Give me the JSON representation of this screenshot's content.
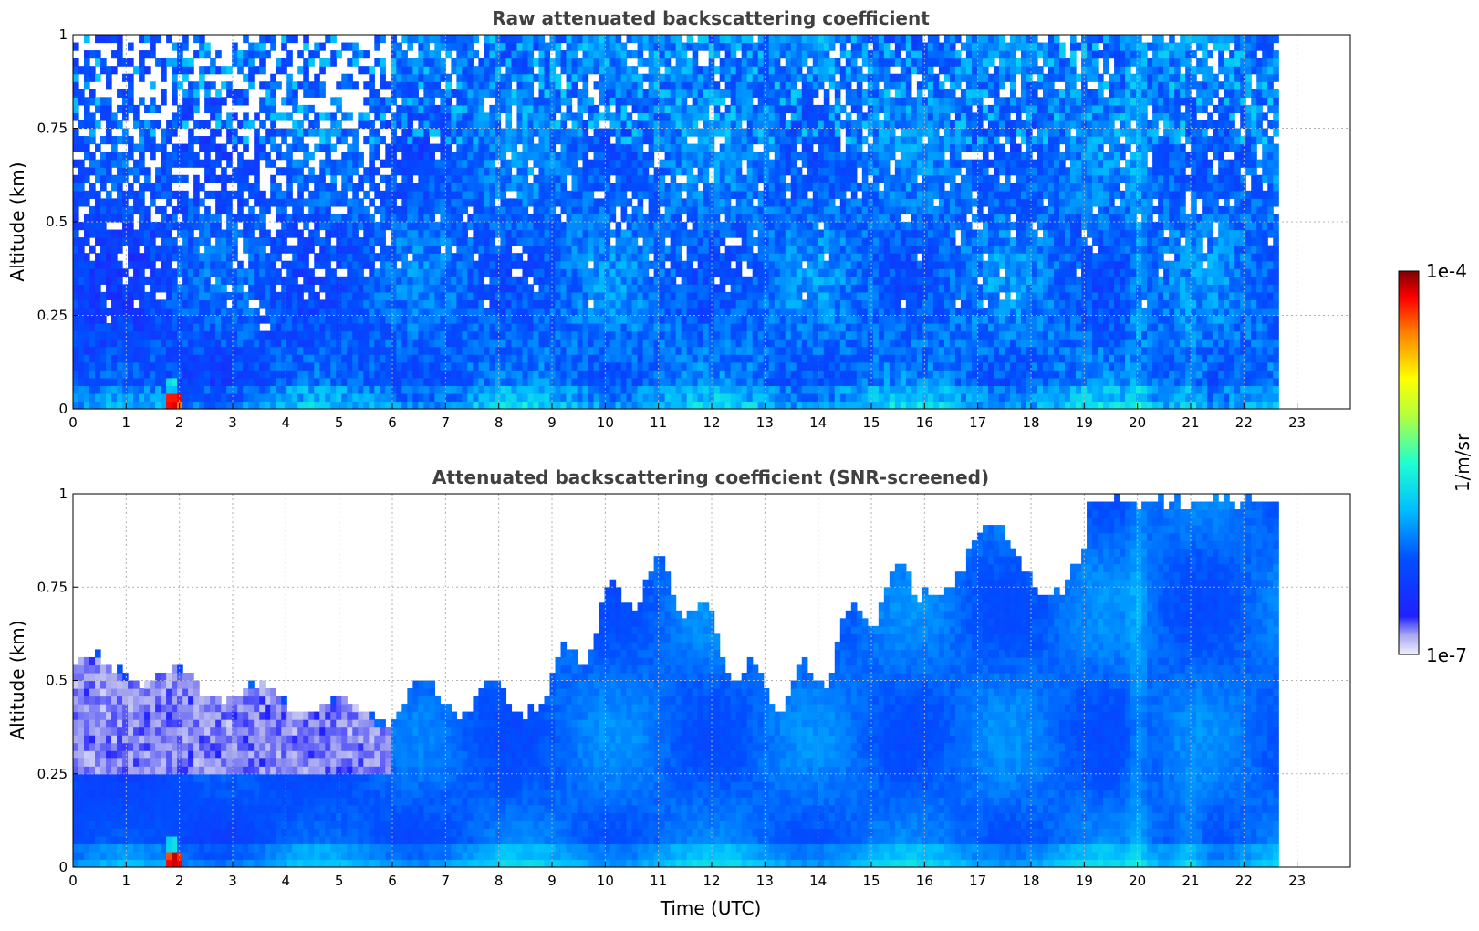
{
  "chart_data": [
    {
      "type": "heatmap",
      "title": "Raw attenuated backscattering coefficient",
      "xlabel": "",
      "ylabel": "Altitude (km)",
      "xlim": [
        0,
        24
      ],
      "ylim": [
        0,
        1
      ],
      "x_ticks": [
        "0",
        "1",
        "2",
        "3",
        "4",
        "5",
        "6",
        "7",
        "8",
        "9",
        "10",
        "11",
        "12",
        "13",
        "14",
        "15",
        "16",
        "17",
        "18",
        "19",
        "20",
        "21",
        "22",
        "23"
      ],
      "y_ticks": [
        "0",
        "0.25",
        "0.5",
        "0.75",
        "1"
      ],
      "data_end_hour": 22.65,
      "grid": true,
      "screened": false
    },
    {
      "type": "heatmap",
      "title": "Attenuated backscattering coefficient (SNR-screened)",
      "xlabel": "Time (UTC)",
      "ylabel": "Altitude (km)",
      "xlim": [
        0,
        24
      ],
      "ylim": [
        0,
        1
      ],
      "x_ticks": [
        "0",
        "1",
        "2",
        "3",
        "4",
        "5",
        "6",
        "7",
        "8",
        "9",
        "10",
        "11",
        "12",
        "13",
        "14",
        "15",
        "16",
        "17",
        "18",
        "19",
        "20",
        "21",
        "22",
        "23"
      ],
      "y_ticks": [
        "0",
        "0.25",
        "0.5",
        "0.75",
        "1"
      ],
      "data_end_hour": 22.65,
      "grid": true,
      "screened": true
    }
  ],
  "colorbar": {
    "label": "1/m/sr",
    "max_label": "1e-4",
    "min_label": "1e-7",
    "colormap": "jet",
    "scale": "log",
    "range": [
      1e-07,
      0.0001
    ]
  }
}
